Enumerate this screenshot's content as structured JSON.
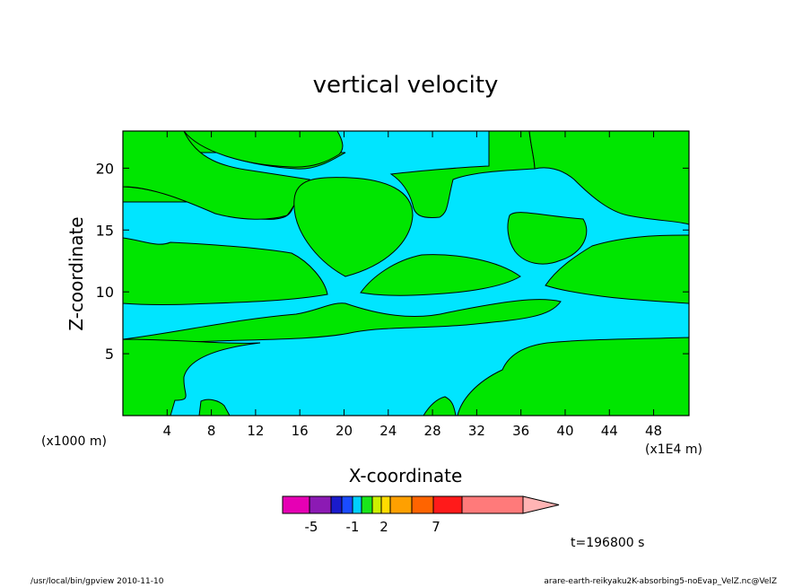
{
  "chart_data": {
    "type": "heatmap",
    "title": "vertical velocity",
    "xlabel": "X-coordinate",
    "ylabel": "Z-coordinate",
    "x_unit_left": "(x1000 m)",
    "x_unit_right": "(x1E4 m)",
    "xlim": [
      0,
      51.2
    ],
    "ylim": [
      0,
      23
    ],
    "x_ticks": [
      4,
      8,
      12,
      16,
      20,
      24,
      28,
      32,
      36,
      40,
      44,
      48
    ],
    "y_ticks": [
      5,
      10,
      15,
      20
    ],
    "background_color": "#00e5ff",
    "region_color": "#00e600",
    "colorbar": {
      "colors": [
        "#e600b4",
        "#8c1ab4",
        "#1a1acc",
        "#1a4cff",
        "#00d0ff",
        "#1ae61a",
        "#ccf000",
        "#ffdc00",
        "#ffa000",
        "#ff6400",
        "#ff1a1a",
        "#ff7a7a",
        "#ffb4b4"
      ],
      "labels": [
        "-5",
        "-1",
        "2",
        "7"
      ]
    },
    "time_label": "t=196800 s"
  },
  "footer": {
    "left": "/usr/local/bin/gpview  2010-11-10",
    "right": "arare-earth-reikyaku2K-absorbing5-noEvap_VelZ.nc@VelZ"
  }
}
